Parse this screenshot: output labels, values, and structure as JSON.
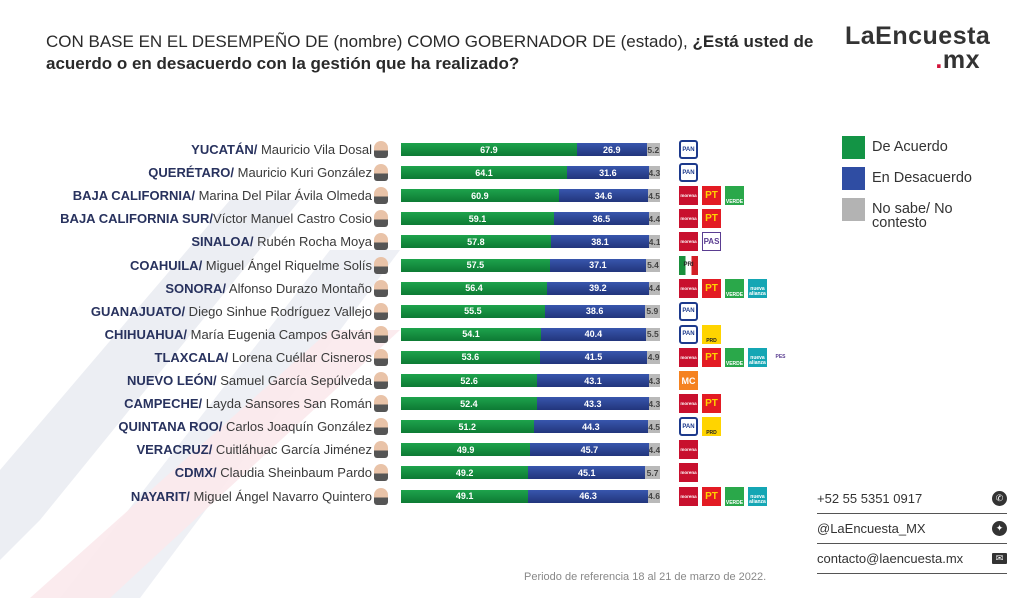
{
  "title": {
    "plain": "CON BASE EN EL DESEMPEÑO DE (nombre) COMO GOBERNADOR DE (estado), ",
    "bold": "¿Está usted de acuerdo o en desacuerdo con la gestión que ha realizado?"
  },
  "logo": {
    "main": "LaEncuesta",
    "dot": ".",
    "suffix": "mx"
  },
  "colors": {
    "acuerdo": "#139445",
    "desacuerdo": "#2f4da3",
    "no_sabe": "#b3b3b3",
    "state_text": "#28325e"
  },
  "chart_data": {
    "type": "bar",
    "orientation": "horizontal",
    "stacked": true,
    "xlim": [
      0,
      100
    ],
    "legend_placement": "right",
    "series": [
      {
        "name": "De Acuerdo",
        "values": [
          67.9,
          64.1,
          60.9,
          59.1,
          57.8,
          57.5,
          56.4,
          55.5,
          54.1,
          53.6,
          52.6,
          52.4,
          51.2,
          49.9,
          49.2,
          49.1
        ]
      },
      {
        "name": "En Desacuerdo",
        "values": [
          26.9,
          31.6,
          34.6,
          36.5,
          38.1,
          37.1,
          39.2,
          38.6,
          40.4,
          41.5,
          43.1,
          43.3,
          44.3,
          45.7,
          45.1,
          46.3
        ]
      },
      {
        "name": "No sabe/ No contesto",
        "values": [
          5.2,
          4.3,
          4.5,
          4.4,
          4.1,
          5.4,
          4.4,
          5.9,
          5.5,
          4.9,
          4.3,
          4.3,
          4.5,
          4.4,
          5.7,
          4.6
        ]
      }
    ],
    "rows": [
      {
        "state": "YUCATÁN/",
        "name": " Mauricio Vila Dosal",
        "parties": [
          "PAN"
        ]
      },
      {
        "state": "QUERÉTARO/",
        "name": " Mauricio Kuri González",
        "parties": [
          "PAN"
        ]
      },
      {
        "state": "BAJA CALIFORNIA/",
        "name": " Marina Del Pilar Ávila Olmeda",
        "parties": [
          "morena",
          "PT",
          "VERDE"
        ]
      },
      {
        "state": "BAJA CALIFORNIA SUR/",
        "name": "Víctor Manuel Castro Cosio",
        "parties": [
          "morena",
          "PT"
        ]
      },
      {
        "state": "SINALOA/",
        "name": " Rubén Rocha Moya",
        "parties": [
          "morena",
          "PAS"
        ]
      },
      {
        "state": "COAHUILA/",
        "name": " Miguel Ángel Riquelme Solís",
        "parties": [
          "PRI"
        ]
      },
      {
        "state": "SONORA/",
        "name": " Alfonso Durazo Montaño",
        "parties": [
          "morena",
          "PT",
          "VERDE",
          "nueva alianza"
        ]
      },
      {
        "state": "GUANAJUATO/",
        "name": " Diego Sinhue Rodríguez Vallejo",
        "parties": [
          "PAN"
        ]
      },
      {
        "state": "CHIHUAHUA/",
        "name": " María Eugenia Campos Galván",
        "parties": [
          "PAN",
          "PRD"
        ]
      },
      {
        "state": "TLAXCALA/",
        "name": " Lorena Cuéllar Cisneros",
        "parties": [
          "morena",
          "PT",
          "VERDE",
          "nueva alianza",
          "PES"
        ]
      },
      {
        "state": "NUEVO LEÓN/",
        "name": " Samuel García Sepúlveda",
        "parties": [
          "MC"
        ]
      },
      {
        "state": "CAMPECHE/",
        "name": " Layda Sansores San Román",
        "parties": [
          "morena",
          "PT"
        ]
      },
      {
        "state": "QUINTANA ROO/",
        "name": " Carlos Joaquín González",
        "parties": [
          "PAN",
          "PRD"
        ]
      },
      {
        "state": "VERACRUZ/",
        "name": " Cuitláhuac García Jiménez",
        "parties": [
          "morena"
        ]
      },
      {
        "state": "CDMX/",
        "name": " Claudia Sheinbaum Pardo",
        "parties": [
          "morena"
        ]
      },
      {
        "state": "NAYARIT/",
        "name": " Miguel Ángel Navarro Quintero",
        "parties": [
          "morena",
          "PT",
          "VERDE",
          "nueva alianza"
        ]
      }
    ]
  },
  "legend": [
    {
      "label": "De Acuerdo"
    },
    {
      "label": "En Desacuerdo"
    },
    {
      "label": "No sabe/ No contesto"
    }
  ],
  "contacts": [
    {
      "text": "+52 55 5351 0917",
      "icon": "whatsapp-icon"
    },
    {
      "text": "@LaEncuesta_MX",
      "icon": "twitter-icon"
    },
    {
      "text": "contacto@laencuesta.mx",
      "icon": "mail-icon"
    }
  ],
  "period": "Periodo de referencia 18 al 21 de marzo de 2022."
}
